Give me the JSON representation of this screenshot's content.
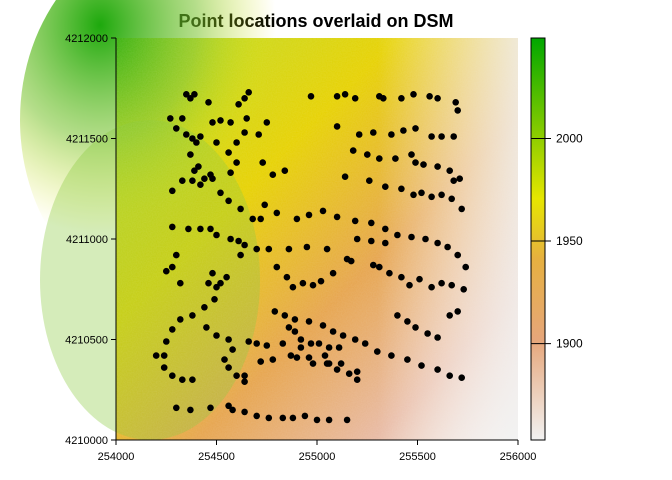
{
  "chart_data": {
    "type": "scatter",
    "title": "Point locations overlaid on DSM",
    "xlabel": "",
    "ylabel": "",
    "xlim": [
      254000,
      256000
    ],
    "ylim": [
      4210000,
      4212000
    ],
    "x_ticks": [
      254000,
      254500,
      255000,
      255500,
      256000
    ],
    "y_ticks": [
      4210000,
      4210500,
      4211000,
      4211500,
      4212000
    ],
    "x_tick_labels": [
      "254000",
      "254500",
      "255000",
      "255500",
      "256000"
    ],
    "y_tick_labels": [
      "4210000",
      "4210500",
      "4211000",
      "4211500",
      "4212000"
    ],
    "raster": {
      "name": "DSM",
      "range": [
        1853,
        2049
      ],
      "colorbar_ticks": [
        1900,
        1950,
        2000
      ],
      "colorbar_tick_labels": [
        "1900",
        "1950",
        "2000"
      ],
      "colors": {
        "low": "#f2f2f2",
        "mid_low": "#e6a67a",
        "mid": "#e6b040",
        "mid_high": "#e6e600",
        "high": "#00a600"
      }
    },
    "point_color": "#000000",
    "points": [
      [
        254350,
        4211720
      ],
      [
        254370,
        4211700
      ],
      [
        254390,
        4211720
      ],
      [
        254460,
        4211680
      ],
      [
        254640,
        4211700
      ],
      [
        254660,
        4211730
      ],
      [
        254610,
        4211670
      ],
      [
        254270,
        4211600
      ],
      [
        254330,
        4211600
      ],
      [
        254300,
        4211550
      ],
      [
        254350,
        4211520
      ],
      [
        254380,
        4211500
      ],
      [
        254400,
        4211480
      ],
      [
        254420,
        4211510
      ],
      [
        254480,
        4211580
      ],
      [
        254520,
        4211590
      ],
      [
        254570,
        4211580
      ],
      [
        254650,
        4211600
      ],
      [
        254750,
        4211580
      ],
      [
        254640,
        4211530
      ],
      [
        254600,
        4211480
      ],
      [
        254710,
        4211520
      ],
      [
        254560,
        4211430
      ],
      [
        254500,
        4211480
      ],
      [
        254370,
        4211420
      ],
      [
        254410,
        4211360
      ],
      [
        254390,
        4211340
      ],
      [
        254420,
        4211270
      ],
      [
        254470,
        4211320
      ],
      [
        254480,
        4211300
      ],
      [
        254570,
        4211330
      ],
      [
        254600,
        4211380
      ],
      [
        254730,
        4211380
      ],
      [
        254780,
        4211320
      ],
      [
        254840,
        4211340
      ],
      [
        254280,
        4211240
      ],
      [
        254330,
        4211290
      ],
      [
        254380,
        4211290
      ],
      [
        254440,
        4211300
      ],
      [
        254520,
        4211230
      ],
      [
        254560,
        4211190
      ],
      [
        254620,
        4211150
      ],
      [
        254680,
        4211100
      ],
      [
        254720,
        4211100
      ],
      [
        254740,
        4211170
      ],
      [
        254800,
        4211130
      ],
      [
        254900,
        4211100
      ],
      [
        254960,
        4211120
      ],
      [
        255030,
        4211140
      ],
      [
        254280,
        4211060
      ],
      [
        254360,
        4211050
      ],
      [
        254420,
        4211050
      ],
      [
        254470,
        4211050
      ],
      [
        254500,
        4211020
      ],
      [
        254570,
        4211000
      ],
      [
        254610,
        4210990
      ],
      [
        254640,
        4210970
      ],
      [
        254620,
        4210920
      ],
      [
        254700,
        4210950
      ],
      [
        254760,
        4210950
      ],
      [
        254860,
        4210950
      ],
      [
        254950,
        4210960
      ],
      [
        255050,
        4210950
      ],
      [
        254300,
        4210920
      ],
      [
        254280,
        4210860
      ],
      [
        254250,
        4210840
      ],
      [
        254320,
        4210780
      ],
      [
        254480,
        4210830
      ],
      [
        254460,
        4210780
      ],
      [
        254520,
        4210780
      ],
      [
        254550,
        4210810
      ],
      [
        254500,
        4210760
      ],
      [
        254490,
        4210700
      ],
      [
        254440,
        4210660
      ],
      [
        254380,
        4210620
      ],
      [
        254320,
        4210600
      ],
      [
        254280,
        4210550
      ],
      [
        254450,
        4210560
      ],
      [
        254500,
        4210520
      ],
      [
        254560,
        4210500
      ],
      [
        254580,
        4210450
      ],
      [
        254540,
        4210400
      ],
      [
        254660,
        4210490
      ],
      [
        254700,
        4210480
      ],
      [
        254750,
        4210470
      ],
      [
        254830,
        4210480
      ],
      [
        254920,
        4210460
      ],
      [
        254970,
        4210480
      ],
      [
        255010,
        4210480
      ],
      [
        255060,
        4210460
      ],
      [
        255110,
        4210460
      ],
      [
        254860,
        4210560
      ],
      [
        254890,
        4210540
      ],
      [
        254920,
        4210500
      ],
      [
        254980,
        4210380
      ],
      [
        255050,
        4210380
      ],
      [
        255100,
        4210350
      ],
      [
        255200,
        4210340
      ],
      [
        254280,
        4210320
      ],
      [
        254330,
        4210300
      ],
      [
        254380,
        4210300
      ],
      [
        254250,
        4210490
      ],
      [
        254240,
        4210420
      ],
      [
        254200,
        4210420
      ],
      [
        254240,
        4210360
      ],
      [
        254560,
        4210360
      ],
      [
        254600,
        4210320
      ],
      [
        254640,
        4210290
      ],
      [
        254640,
        4210320
      ],
      [
        254720,
        4210390
      ],
      [
        254780,
        4210400
      ],
      [
        254870,
        4210420
      ],
      [
        254900,
        4210410
      ],
      [
        254960,
        4210410
      ],
      [
        255040,
        4210420
      ],
      [
        255060,
        4210380
      ],
      [
        255120,
        4210380
      ],
      [
        255160,
        4210330
      ],
      [
        255200,
        4210300
      ],
      [
        254300,
        4210160
      ],
      [
        254370,
        4210150
      ],
      [
        254470,
        4210160
      ],
      [
        254560,
        4210170
      ],
      [
        254580,
        4210150
      ],
      [
        254640,
        4210140
      ],
      [
        254700,
        4210120
      ],
      [
        254760,
        4210110
      ],
      [
        254830,
        4210110
      ],
      [
        254880,
        4210110
      ],
      [
        254940,
        4210120
      ],
      [
        255000,
        4210100
      ],
      [
        255060,
        4210100
      ],
      [
        255150,
        4210100
      ],
      [
        254800,
        4210860
      ],
      [
        254850,
        4210810
      ],
      [
        254880,
        4210760
      ],
      [
        254930,
        4210780
      ],
      [
        254980,
        4210770
      ],
      [
        255020,
        4210790
      ],
      [
        255080,
        4210830
      ],
      [
        255150,
        4210900
      ],
      [
        255170,
        4210890
      ],
      [
        255280,
        4210870
      ],
      [
        255310,
        4210860
      ],
      [
        255360,
        4210830
      ],
      [
        255420,
        4210810
      ],
      [
        255460,
        4210770
      ],
      [
        255510,
        4210800
      ],
      [
        255570,
        4210760
      ],
      [
        255620,
        4210780
      ],
      [
        255670,
        4210770
      ],
      [
        255730,
        4210750
      ],
      [
        255700,
        4210640
      ],
      [
        255660,
        4210620
      ],
      [
        254970,
        4211710
      ],
      [
        255100,
        4211710
      ],
      [
        255140,
        4211720
      ],
      [
        255190,
        4211700
      ],
      [
        255310,
        4211710
      ],
      [
        255330,
        4211700
      ],
      [
        255420,
        4211700
      ],
      [
        255480,
        4211720
      ],
      [
        255560,
        4211710
      ],
      [
        255600,
        4211700
      ],
      [
        255690,
        4211680
      ],
      [
        255700,
        4211640
      ],
      [
        255100,
        4211560
      ],
      [
        255210,
        4211520
      ],
      [
        255280,
        4211530
      ],
      [
        255370,
        4211520
      ],
      [
        255430,
        4211540
      ],
      [
        255490,
        4211550
      ],
      [
        255570,
        4211510
      ],
      [
        255620,
        4211510
      ],
      [
        255680,
        4211510
      ],
      [
        255180,
        4211440
      ],
      [
        255250,
        4211420
      ],
      [
        255310,
        4211400
      ],
      [
        255390,
        4211400
      ],
      [
        255470,
        4211420
      ],
      [
        255490,
        4211380
      ],
      [
        255530,
        4211370
      ],
      [
        255600,
        4211360
      ],
      [
        255660,
        4211340
      ],
      [
        255680,
        4211290
      ],
      [
        255710,
        4211300
      ],
      [
        255140,
        4211310
      ],
      [
        255260,
        4211290
      ],
      [
        255340,
        4211260
      ],
      [
        255420,
        4211250
      ],
      [
        255480,
        4211220
      ],
      [
        255520,
        4211230
      ],
      [
        255570,
        4211210
      ],
      [
        255620,
        4211220
      ],
      [
        255670,
        4211200
      ],
      [
        255720,
        4211150
      ],
      [
        255100,
        4211110
      ],
      [
        255190,
        4211090
      ],
      [
        255270,
        4211080
      ],
      [
        255340,
        4211050
      ],
      [
        255400,
        4211020
      ],
      [
        255470,
        4211010
      ],
      [
        255540,
        4211000
      ],
      [
        255600,
        4210980
      ],
      [
        255650,
        4210960
      ],
      [
        255700,
        4210920
      ],
      [
        255740,
        4210860
      ],
      [
        255200,
        4211000
      ],
      [
        255270,
        4210990
      ],
      [
        255340,
        4210980
      ],
      [
        254790,
        4210640
      ],
      [
        254840,
        4210620
      ],
      [
        254890,
        4210600
      ],
      [
        254960,
        4210590
      ],
      [
        255030,
        4210570
      ],
      [
        255080,
        4210540
      ],
      [
        255130,
        4210520
      ],
      [
        255190,
        4210500
      ],
      [
        255240,
        4210480
      ],
      [
        255300,
        4210440
      ],
      [
        255370,
        4210420
      ],
      [
        255450,
        4210400
      ],
      [
        255520,
        4210370
      ],
      [
        255600,
        4210350
      ],
      [
        255660,
        4210320
      ],
      [
        255720,
        4210310
      ],
      [
        255400,
        4210620
      ],
      [
        255450,
        4210590
      ],
      [
        255490,
        4210560
      ],
      [
        255550,
        4210530
      ],
      [
        255600,
        4210510
      ]
    ]
  }
}
